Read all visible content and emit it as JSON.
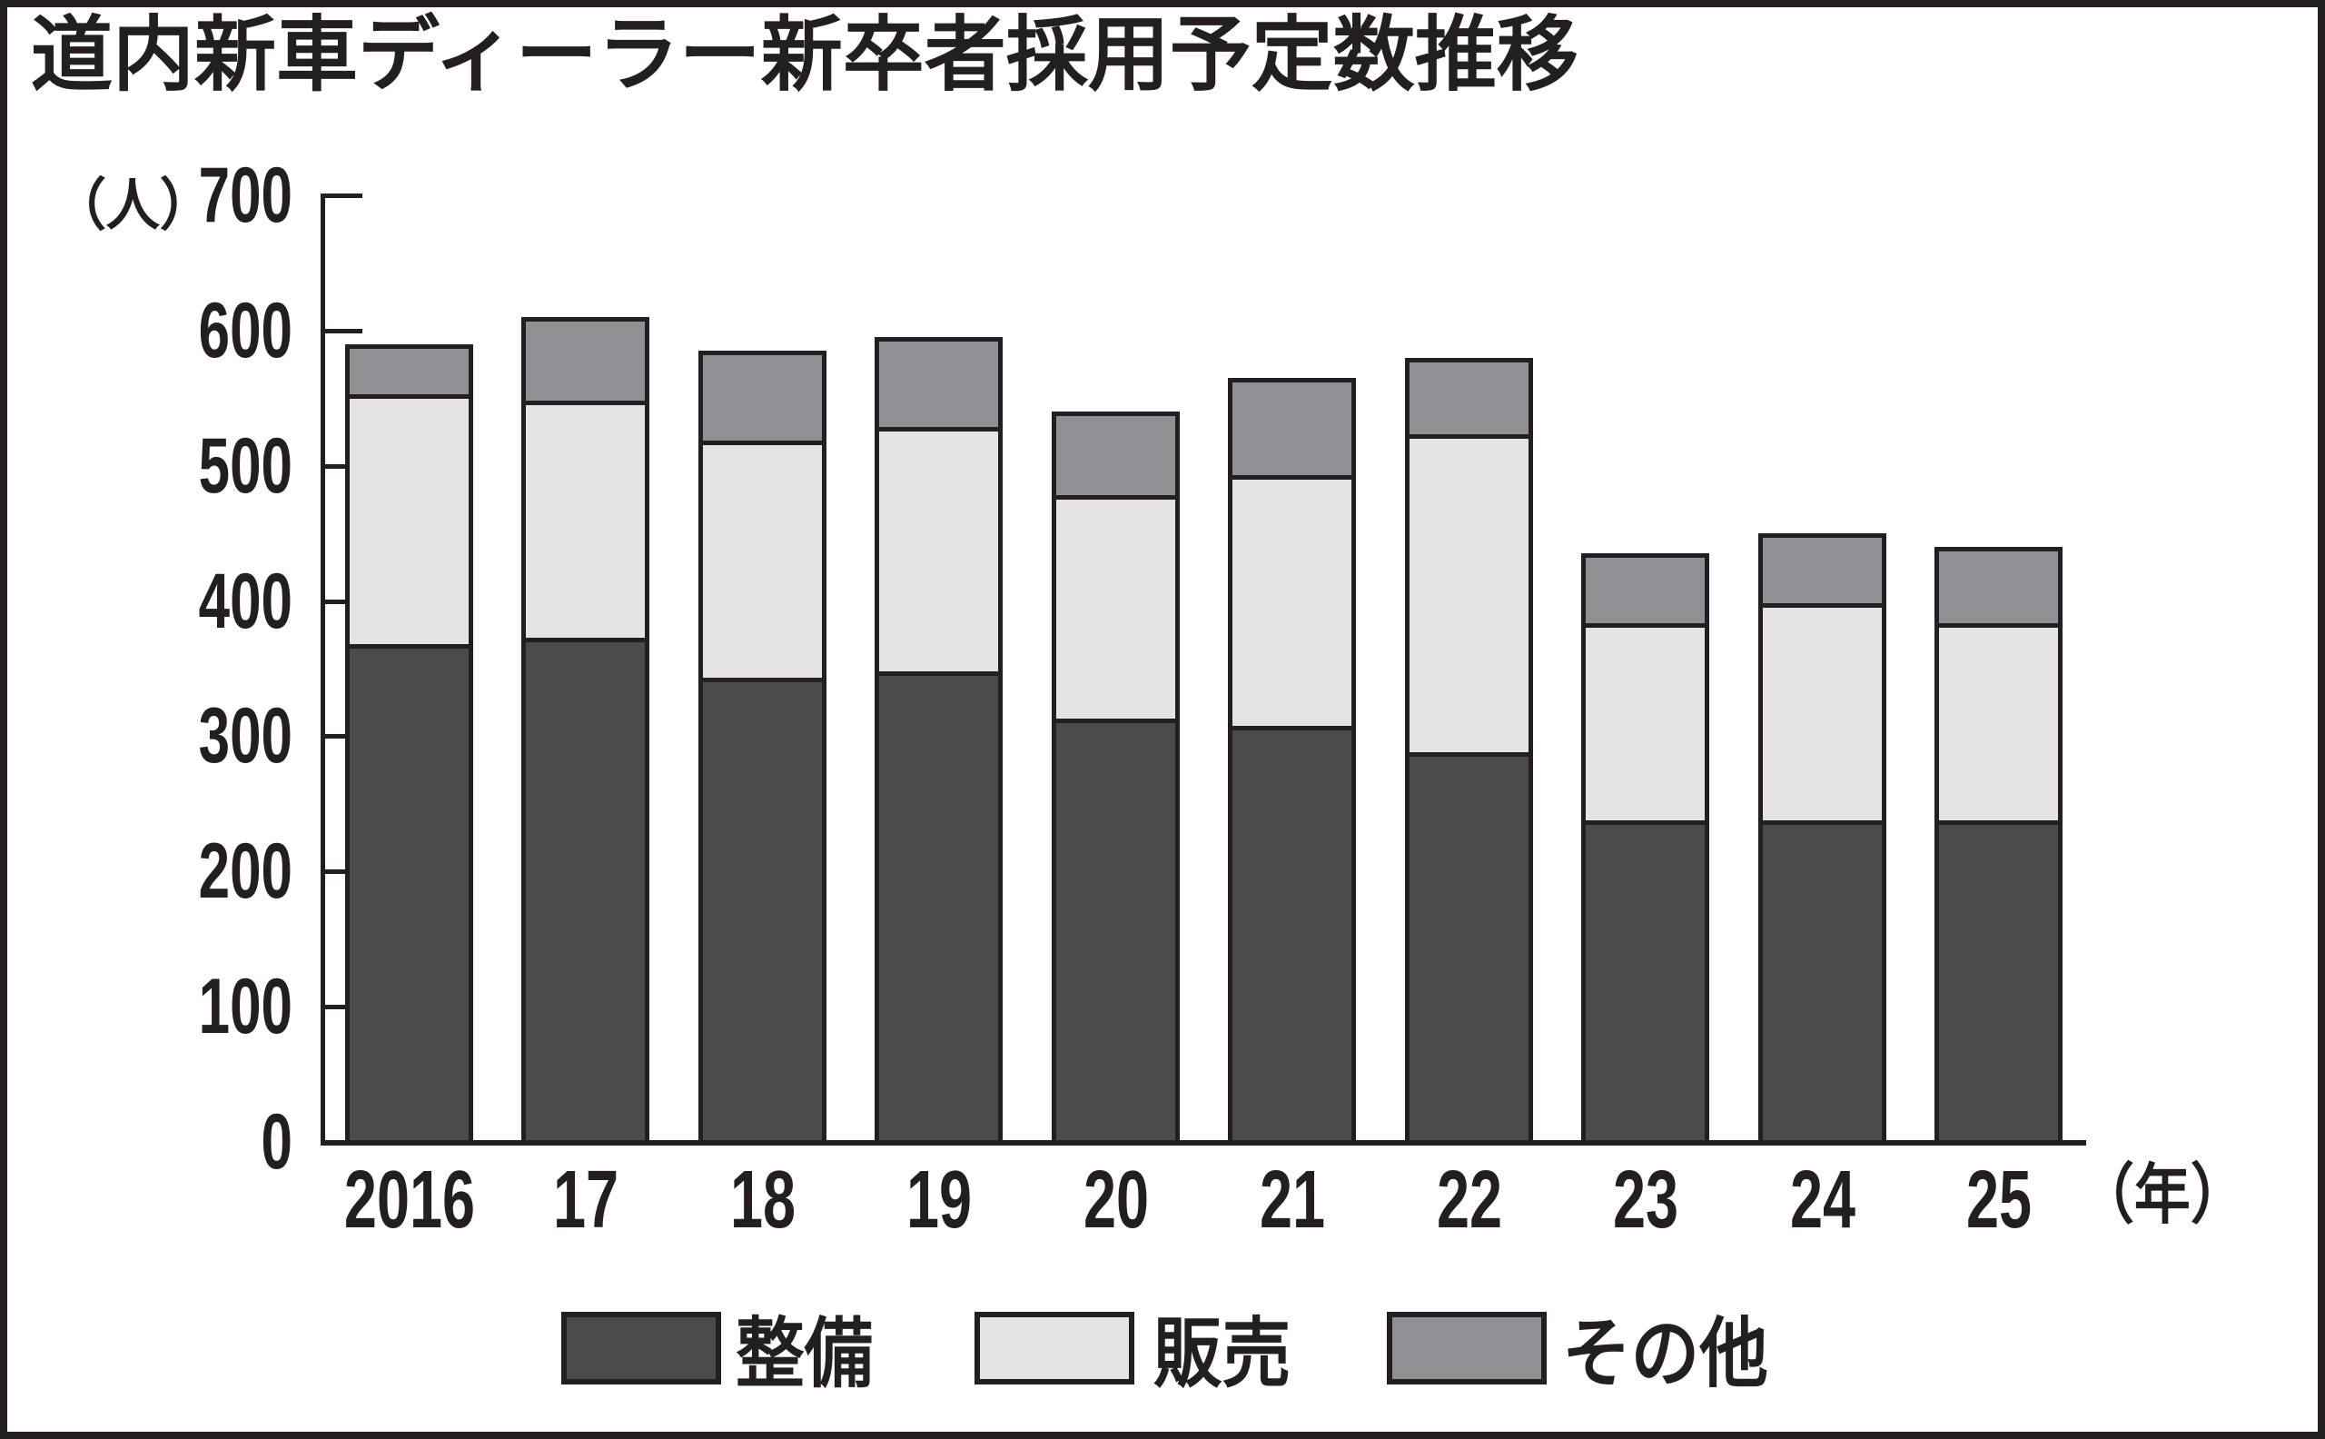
{
  "title": "道内新車ディーラー新卒者採用予定数推移",
  "y_axis": {
    "unit_label": "（人）",
    "tick_labels": [
      "0",
      "100",
      "200",
      "300",
      "400",
      "500",
      "600",
      "700"
    ]
  },
  "x_axis": {
    "labels": [
      "2016",
      "17",
      "18",
      "19",
      "20",
      "21",
      "22",
      "23",
      "24",
      "25"
    ],
    "suffix": "（年）"
  },
  "legend": [
    {
      "key": "maintenance",
      "label": "整備",
      "color": "#4d4a4e"
    },
    {
      "key": "sales",
      "label": "販売",
      "color": "#e4e3e5"
    },
    {
      "key": "other",
      "label": "その他",
      "color": "#929094"
    }
  ],
  "colors": {
    "ink": "#231f20",
    "background": "#ffffff"
  },
  "chart_data": {
    "type": "bar",
    "stacked": true,
    "title": "道内新車ディーラー新卒者採用予定数推移",
    "categories": [
      "2016",
      "17",
      "18",
      "19",
      "20",
      "21",
      "22",
      "23",
      "24",
      "25"
    ],
    "series": [
      {
        "key": "maintenance",
        "name": "整備",
        "color": "#4d4a4e",
        "values": [
          370,
          375,
          345,
          350,
          315,
          310,
          290,
          240,
          240,
          240
        ]
      },
      {
        "key": "sales",
        "name": "販売",
        "color": "#e4e3e5",
        "values": [
          180,
          170,
          170,
          175,
          160,
          180,
          230,
          140,
          155,
          140
        ]
      },
      {
        "key": "other",
        "name": "その他",
        "color": "#929094",
        "values": [
          40,
          65,
          70,
          70,
          65,
          75,
          60,
          55,
          55,
          60
        ]
      }
    ],
    "totals": [
      590,
      610,
      585,
      595,
      540,
      565,
      580,
      435,
      450,
      440
    ],
    "ylabel": "人",
    "ylim": [
      0,
      700
    ],
    "ytick_interval": 100,
    "grid": false,
    "legend_position": "bottom"
  }
}
